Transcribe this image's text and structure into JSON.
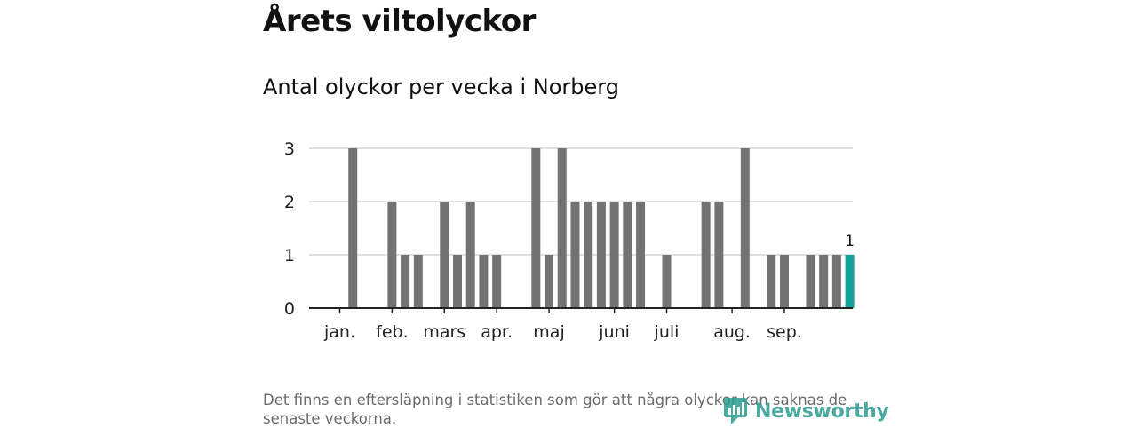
{
  "title": "Årets viltolyckor",
  "subtitle": "Antal olyckor per vecka i Norberg",
  "footnote": "Det finns en eftersläpning i statistiken som gör att några olyckor kan saknas de senaste veckorna.",
  "brand": {
    "name": "Newsworthy",
    "color": "#2a9d8f"
  },
  "colors": {
    "bar": "#737275",
    "highlight": "#13a39a",
    "grid": "#d6d6d6",
    "axis": "#222222"
  },
  "chart_data": {
    "type": "bar",
    "title": "Antal olyckor per vecka i Norberg",
    "xlabel": "",
    "ylabel": "",
    "ylim": [
      0,
      3
    ],
    "yticks": [
      0,
      1,
      2,
      3
    ],
    "grid": true,
    "weeks": [
      1,
      2,
      3,
      4,
      5,
      6,
      7,
      8,
      9,
      10,
      11,
      12,
      13,
      14,
      15,
      16,
      17,
      18,
      19,
      20,
      21,
      22,
      23,
      24,
      25,
      26,
      27,
      28,
      29,
      30,
      31,
      32,
      33,
      34,
      35,
      36,
      37,
      38,
      39,
      40
    ],
    "values": [
      0,
      3,
      0,
      0,
      2,
      1,
      1,
      0,
      2,
      1,
      2,
      1,
      1,
      0,
      0,
      3,
      1,
      3,
      2,
      2,
      2,
      2,
      2,
      2,
      0,
      1,
      0,
      0,
      2,
      2,
      0,
      3,
      0,
      1,
      1,
      0,
      1,
      1,
      1,
      1
    ],
    "highlight_index": 39,
    "highlight_label": "1",
    "month_labels": [
      {
        "label": "jan.",
        "week": 1
      },
      {
        "label": "feb.",
        "week": 5
      },
      {
        "label": "mars",
        "week": 9
      },
      {
        "label": "apr.",
        "week": 13
      },
      {
        "label": "maj",
        "week": 17
      },
      {
        "label": "juni",
        "week": 22
      },
      {
        "label": "juli",
        "week": 26
      },
      {
        "label": "aug.",
        "week": 31
      },
      {
        "label": "sep.",
        "week": 35
      }
    ]
  }
}
